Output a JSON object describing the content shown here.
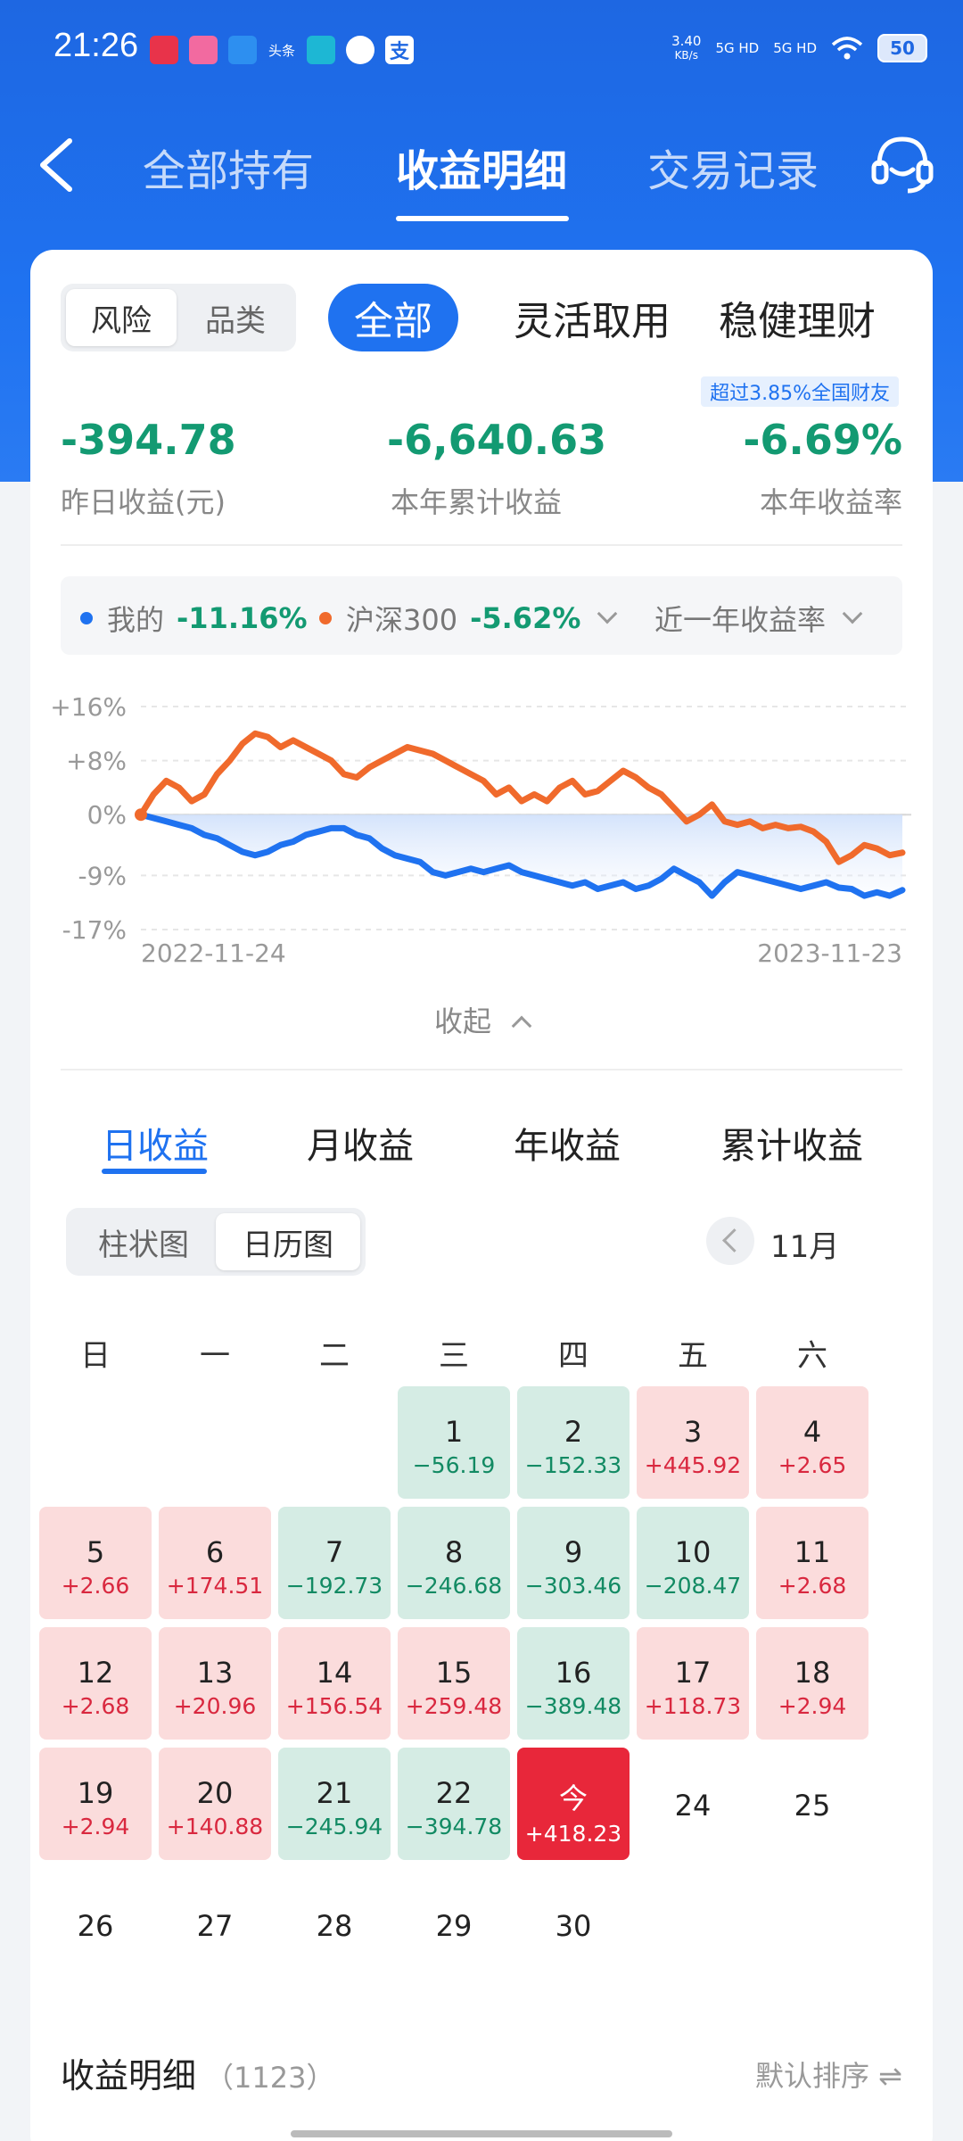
{
  "status_bar": {
    "time": "21:26",
    "net_speed_top": "3.40",
    "net_speed_bottom": "KB/s",
    "signal1": "5G HD",
    "signal2": "5G HD",
    "battery": "50",
    "app_icons": [
      "app-icon",
      "app-icon",
      "app-icon",
      "toutiao-icon",
      "app-icon",
      "app-icon",
      "alipay-icon"
    ]
  },
  "nav": {
    "tabs": [
      "全部持有",
      "收益明细",
      "交易记录"
    ],
    "active_tab": 1
  },
  "top_seg": {
    "items": [
      "风险",
      "品类"
    ],
    "active": 0
  },
  "filters": [
    "全部",
    "灵活取用",
    "稳健理财"
  ],
  "rank_badge": "超过3.85%全国财友",
  "stats": [
    {
      "value": "-394.78",
      "label": "昨日收益(元)"
    },
    {
      "value": "-6,640.63",
      "label": "本年累计收益"
    },
    {
      "value": "-6.69%",
      "label": "本年收益率"
    }
  ],
  "legend": {
    "mine_label": "我的",
    "mine_value": "-11.16%",
    "index_label": "沪深300",
    "index_value": "-5.62%",
    "period": "近一年收益率"
  },
  "chart_data": {
    "type": "line",
    "ylim": [
      -17,
      16
    ],
    "yticks": [
      "+16%",
      "+8%",
      "0%",
      "-9%",
      "-17%"
    ],
    "ytick_values": [
      16,
      8,
      0,
      -9,
      -17
    ],
    "x_start": "2022-11-24",
    "x_end": "2023-11-23",
    "series": [
      {
        "name": "我的",
        "color": "#1f72f0",
        "values": [
          0,
          -0.5,
          -1,
          -1.5,
          -2,
          -3,
          -3.5,
          -4.5,
          -5.5,
          -6,
          -5.5,
          -4.5,
          -4,
          -3,
          -2.5,
          -2,
          -2,
          -3,
          -3.5,
          -5,
          -6,
          -6.5,
          -7,
          -8.5,
          -9,
          -8.5,
          -8,
          -8.5,
          -8,
          -7.5,
          -8.5,
          -9,
          -9.5,
          -10,
          -10.5,
          -10,
          -11,
          -10.5,
          -10,
          -11,
          -10.5,
          -9.5,
          -8,
          -9,
          -10,
          -12,
          -10,
          -8.5,
          -9,
          -9.5,
          -10,
          -10.5,
          -11,
          -10.5,
          -10,
          -10.8,
          -11,
          -12,
          -11.5,
          -12,
          -11.16
        ]
      },
      {
        "name": "沪深300",
        "color": "#f06a2c",
        "values": [
          0,
          3,
          5,
          4,
          2,
          3,
          6,
          8,
          10.5,
          12,
          11.5,
          10,
          11,
          10,
          9,
          8,
          6,
          5.5,
          7,
          8,
          9,
          10,
          9.5,
          9,
          8,
          7,
          6,
          5,
          3,
          4,
          2,
          3,
          2,
          4,
          5,
          3,
          3.5,
          5,
          6.5,
          5.5,
          4,
          3,
          1,
          -1,
          0,
          1.5,
          -1,
          -1.5,
          -1,
          -2,
          -1.5,
          -2,
          -1.8,
          -2.5,
          -4,
          -7,
          -6,
          -4.5,
          -5,
          -6,
          -5.62
        ]
      }
    ]
  },
  "collapse_label": "收起",
  "period_tabs": [
    "日收益",
    "月收益",
    "年收益",
    "累计收益"
  ],
  "period_active": 0,
  "view_seg": {
    "items": [
      "柱状图",
      "日历图"
    ],
    "active": 1
  },
  "month_label": "11月",
  "weekdays": [
    "日",
    "一",
    "二",
    "三",
    "四",
    "五",
    "六"
  ],
  "calendar": [
    {
      "day": "1",
      "value": "−56.19",
      "kind": "neg"
    },
    {
      "day": "2",
      "value": "−152.33",
      "kind": "neg"
    },
    {
      "day": "3",
      "value": "+445.92",
      "kind": "pos"
    },
    {
      "day": "4",
      "value": "+2.65",
      "kind": "pos"
    },
    {
      "day": "5",
      "value": "+2.66",
      "kind": "pos"
    },
    {
      "day": "6",
      "value": "+174.51",
      "kind": "pos"
    },
    {
      "day": "7",
      "value": "−192.73",
      "kind": "neg"
    },
    {
      "day": "8",
      "value": "−246.68",
      "kind": "neg"
    },
    {
      "day": "9",
      "value": "−303.46",
      "kind": "neg"
    },
    {
      "day": "10",
      "value": "−208.47",
      "kind": "neg"
    },
    {
      "day": "11",
      "value": "+2.68",
      "kind": "pos"
    },
    {
      "day": "12",
      "value": "+2.68",
      "kind": "pos"
    },
    {
      "day": "13",
      "value": "+20.96",
      "kind": "pos"
    },
    {
      "day": "14",
      "value": "+156.54",
      "kind": "pos"
    },
    {
      "day": "15",
      "value": "+259.48",
      "kind": "pos"
    },
    {
      "day": "16",
      "value": "−389.48",
      "kind": "neg"
    },
    {
      "day": "17",
      "value": "+118.73",
      "kind": "pos"
    },
    {
      "day": "18",
      "value": "+2.94",
      "kind": "pos"
    },
    {
      "day": "19",
      "value": "+2.94",
      "kind": "pos"
    },
    {
      "day": "20",
      "value": "+140.88",
      "kind": "pos"
    },
    {
      "day": "21",
      "value": "−245.94",
      "kind": "neg"
    },
    {
      "day": "22",
      "value": "−394.78",
      "kind": "neg"
    },
    {
      "day": "今",
      "value": "+418.23",
      "kind": "today"
    },
    {
      "day": "24",
      "value": "",
      "kind": "empty"
    },
    {
      "day": "25",
      "value": "",
      "kind": "empty"
    },
    {
      "day": "26",
      "value": "",
      "kind": "empty"
    },
    {
      "day": "27",
      "value": "",
      "kind": "empty"
    },
    {
      "day": "28",
      "value": "",
      "kind": "empty"
    },
    {
      "day": "29",
      "value": "",
      "kind": "empty"
    },
    {
      "day": "30",
      "value": "",
      "kind": "empty"
    }
  ],
  "detail": {
    "title": "收益明细",
    "count": "（1123）",
    "sort": "默认排序 ⇌"
  },
  "colors": {
    "primary": "#1f72f0",
    "gain": "#d9283f",
    "loss": "#139a72"
  }
}
